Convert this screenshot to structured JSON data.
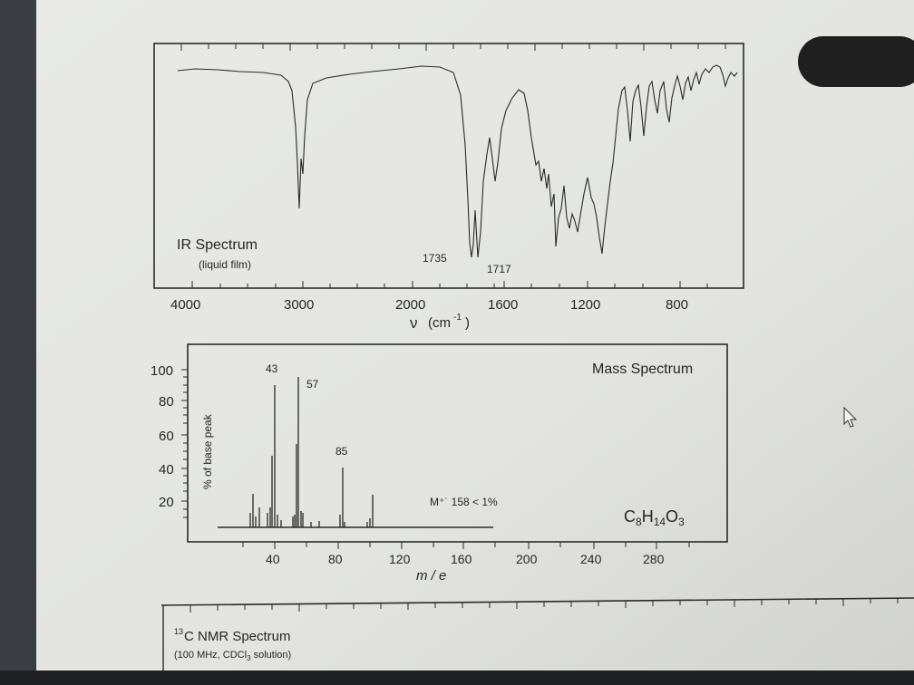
{
  "ir": {
    "title": "IR Spectrum",
    "subtitle": "(liquid film)",
    "peak_labels": [
      "1735",
      "1717"
    ],
    "x_ticks": [
      "4000",
      "3000",
      "2000",
      "1600",
      "1200",
      "800"
    ],
    "xlabel_symbol": "ν",
    "xlabel_unit_open": "(cm",
    "xlabel_unit_exp": "-1",
    "xlabel_unit_close": ")"
  },
  "mass": {
    "title": "Mass Spectrum",
    "ylabel": "% of base peak",
    "y_ticks": [
      "100",
      "80",
      "60",
      "40",
      "20"
    ],
    "peak_labels": [
      "43",
      "57",
      "85"
    ],
    "molecular_ion": "M⁺˙ 158 < 1%",
    "formula": {
      "c": "C",
      "c_n": "8",
      "h": "H",
      "h_n": "14",
      "o": "O",
      "o_n": "3"
    },
    "x_ticks": [
      "40",
      "80",
      "120",
      "160",
      "200",
      "240",
      "280"
    ],
    "xlabel": "m / e"
  },
  "nmr": {
    "sup": "13",
    "title": "C NMR Spectrum",
    "subtitle_pre": "(100 MHz, CDCl",
    "subtitle_sub": "3",
    "subtitle_post": " solution)"
  },
  "colors": {
    "paper": "#e4e6e2",
    "ink": "#2a2a2a",
    "dark_pill": "#1f1f1f",
    "background": "#3a3d42"
  }
}
